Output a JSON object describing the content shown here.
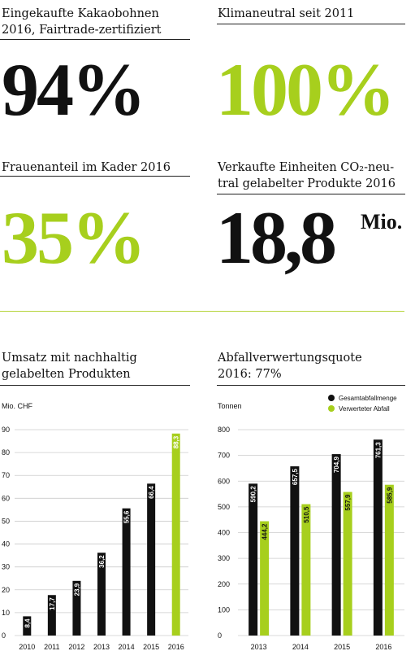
{
  "kpis": [
    {
      "title_lines": [
        "Eingekaufte Kakaobohnen",
        "2016, Fairtrade-zertifiziert"
      ],
      "value": "94%",
      "color": "#111111"
    },
    {
      "title_lines": [
        "Klimaneutral seit 2011"
      ],
      "value": "100%",
      "color": "#a7cf1d"
    },
    {
      "title_lines": [
        "Frauenanteil im Kader 2016"
      ],
      "value": "35%",
      "color": "#a7cf1d"
    },
    {
      "title_lines": [
        "Verkaufte Einheiten CO₂-neu-",
        "tral gelabelter Produkte 2016"
      ],
      "value": "18,8",
      "unit": "Mio.",
      "color": "#111111"
    }
  ],
  "colors": {
    "accent": "#a7cf1d",
    "dark": "#111111",
    "grid": "#cccccc"
  },
  "chart_data": [
    {
      "type": "bar",
      "title_lines": [
        "Umsatz mit nachhaltig",
        "gelabelten Produkten"
      ],
      "ylabel": "Mio. CHF",
      "ylim": [
        0,
        90
      ],
      "yticks": [
        0,
        10,
        20,
        30,
        40,
        50,
        60,
        70,
        80,
        90
      ],
      "categories": [
        "2010",
        "2011",
        "2012",
        "2013",
        "2014",
        "2015",
        "2016"
      ],
      "values": [
        8.4,
        17.7,
        23.9,
        36.2,
        55.6,
        66.4,
        88.3
      ],
      "labels": [
        "8,4",
        "17,7",
        "23,9",
        "36,2",
        "55,6",
        "66,4",
        "88,3"
      ],
      "bar_colors": [
        "#111111",
        "#111111",
        "#111111",
        "#111111",
        "#111111",
        "#111111",
        "#a7cf1d"
      ]
    },
    {
      "type": "bar",
      "title_lines": [
        "Abfallverwertungsquote",
        "2016: 77%"
      ],
      "ylabel": "Tonnen",
      "ylim": [
        0,
        800
      ],
      "yticks": [
        0,
        100,
        200,
        300,
        400,
        500,
        600,
        700,
        800
      ],
      "categories": [
        "2013",
        "2014",
        "2015",
        "2016"
      ],
      "legend_position": "top-right",
      "series": [
        {
          "name": "Gesamtabfallmenge",
          "color": "#111111",
          "values": [
            590.2,
            657.5,
            704.9,
            761.3
          ],
          "labels": [
            "590,2",
            "657,5",
            "704,9",
            "761,3"
          ]
        },
        {
          "name": "Verwerteter Abfall",
          "color": "#a7cf1d",
          "values": [
            444.2,
            510.5,
            557.9,
            585.9
          ],
          "labels": [
            "444,2",
            "510,5",
            "557,9",
            "585,9"
          ]
        }
      ]
    }
  ]
}
